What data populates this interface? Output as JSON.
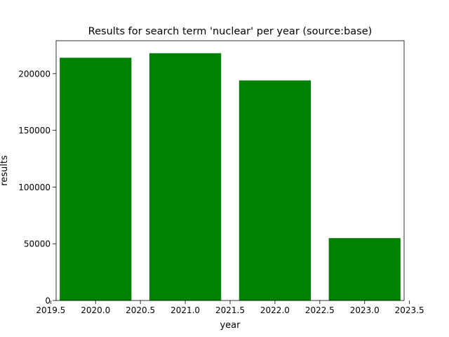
{
  "chart_data": {
    "type": "bar",
    "title": "Results for search term 'nuclear' per year (source:base)",
    "xlabel": "year",
    "ylabel": "results",
    "x": [
      2020,
      2021,
      2022,
      2023
    ],
    "values": [
      214000,
      218000,
      194000,
      55000
    ],
    "bar_width": 0.8,
    "xlim": [
      2019.56,
      2023.44
    ],
    "ylim": [
      0,
      229000
    ],
    "xticks": [
      2019.5,
      2020.0,
      2020.5,
      2021.0,
      2021.5,
      2022.0,
      2022.5,
      2023.0,
      2023.5
    ],
    "xtick_labels": [
      "2019.5",
      "2020.0",
      "2020.5",
      "2021.0",
      "2021.5",
      "2022.0",
      "2022.5",
      "2023.0",
      "2023.5"
    ],
    "yticks": [
      0,
      50000,
      100000,
      150000,
      200000
    ],
    "ytick_labels": [
      "0",
      "50000",
      "100000",
      "150000",
      "200000"
    ],
    "grid": false,
    "color": "#008000"
  }
}
